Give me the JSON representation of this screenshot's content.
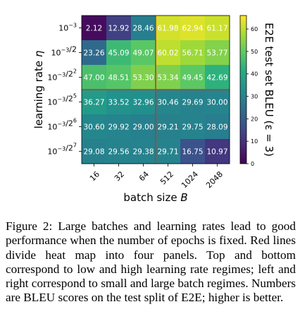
{
  "chart_data": {
    "type": "heatmap",
    "xlabel": "batch size B",
    "ylabel": "learning rate η",
    "x_tick_labels": [
      "16",
      "32",
      "64",
      "512",
      "1024",
      "2048"
    ],
    "y_tick_labels": [
      "10^-3",
      "10^-3/2",
      "10^-3/2^2",
      "10^-3/2^5",
      "10^-3/2^6",
      "10^-3/2^7"
    ],
    "values": [
      [
        2.12,
        12.92,
        28.46,
        61.98,
        62.94,
        61.17
      ],
      [
        23.26,
        45.09,
        49.07,
        60.02,
        56.71,
        53.77
      ],
      [
        47.0,
        48.51,
        53.3,
        53.34,
        49.45,
        42.69
      ],
      [
        36.27,
        33.52,
        32.96,
        30.46,
        29.69,
        30.0
      ],
      [
        30.6,
        29.92,
        29.0,
        29.21,
        29.75,
        28.09
      ],
      [
        29.08,
        29.56,
        29.38,
        29.71,
        16.75,
        10.97
      ]
    ],
    "cell_labels": [
      [
        "2.12",
        "12.92",
        "28.46",
        "61.98",
        "62.94",
        "61.17"
      ],
      [
        "23.26",
        "45.09",
        "49.07",
        "60.02",
        "56.71",
        "53.77"
      ],
      [
        "47.00",
        "48.51",
        "53.30",
        "53.34",
        "49.45",
        "42.69"
      ],
      [
        "36.27",
        "33.52",
        "32.96",
        "30.46",
        "29.69",
        "30.00"
      ],
      [
        "30.60",
        "29.92",
        "29.00",
        "29.21",
        "29.75",
        "28.09"
      ],
      [
        "29.08",
        "29.56",
        "29.38",
        "29.71",
        "16.75",
        "10.97"
      ]
    ],
    "colormap": "viridis",
    "color_range": [
      0,
      66
    ],
    "colorbar": {
      "label": "E2E test set BLEU (ε = 3)",
      "ticks": [
        0,
        10,
        20,
        30,
        40,
        50,
        60
      ]
    },
    "divider_color": "#c0392b"
  },
  "caption": "Figure 2: Large batches and learning rates lead to good performance when the number of epochs is fixed. Red lines divide heat map into four panels. Top and bottom correspond to low and high learning rate regimes; left and right correspond to small and large batch regimes. Numbers are BLEU scores on the test split of E2E; higher is better."
}
